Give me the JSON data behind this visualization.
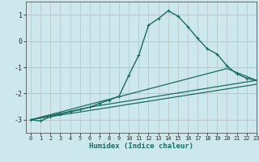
{
  "title": "",
  "xlabel": "Humidex (Indice chaleur)",
  "xlim": [
    -0.5,
    23
  ],
  "ylim": [
    -3.5,
    1.5
  ],
  "yticks": [
    1,
    0,
    -1,
    -2,
    -3
  ],
  "xticks": [
    0,
    1,
    2,
    3,
    4,
    5,
    6,
    7,
    8,
    9,
    10,
    11,
    12,
    13,
    14,
    15,
    16,
    17,
    18,
    19,
    20,
    21,
    22,
    23
  ],
  "background_color": "#cce8ec",
  "grid_color_minor": "#b8d8dc",
  "grid_color_major": "#d08080",
  "line_color": "#1a6b60",
  "series": [
    {
      "x": [
        0,
        1,
        2,
        3,
        4,
        5,
        6,
        7,
        8,
        9,
        10,
        11,
        12,
        13,
        14,
        15,
        16,
        17,
        18,
        19,
        20,
        21,
        22,
        23
      ],
      "y": [
        -3.0,
        -3.05,
        -2.88,
        -2.78,
        -2.7,
        -2.62,
        -2.52,
        -2.38,
        -2.25,
        -2.1,
        -1.3,
        -0.55,
        0.6,
        0.85,
        1.15,
        0.95,
        0.55,
        0.1,
        -0.3,
        -0.5,
        -0.95,
        -1.25,
        -1.42,
        -1.5
      ],
      "marker": "+",
      "linewidth": 1.0,
      "markersize": 3.5
    },
    {
      "x": [
        0,
        6,
        23
      ],
      "y": [
        -3.0,
        -2.52,
        -1.5
      ],
      "marker": null,
      "linewidth": 0.9
    },
    {
      "x": [
        0,
        20,
        23
      ],
      "y": [
        -3.0,
        -1.05,
        -1.5
      ],
      "marker": null,
      "linewidth": 0.9
    },
    {
      "x": [
        0,
        23
      ],
      "y": [
        -3.0,
        -1.65
      ],
      "marker": null,
      "linewidth": 0.9
    }
  ]
}
